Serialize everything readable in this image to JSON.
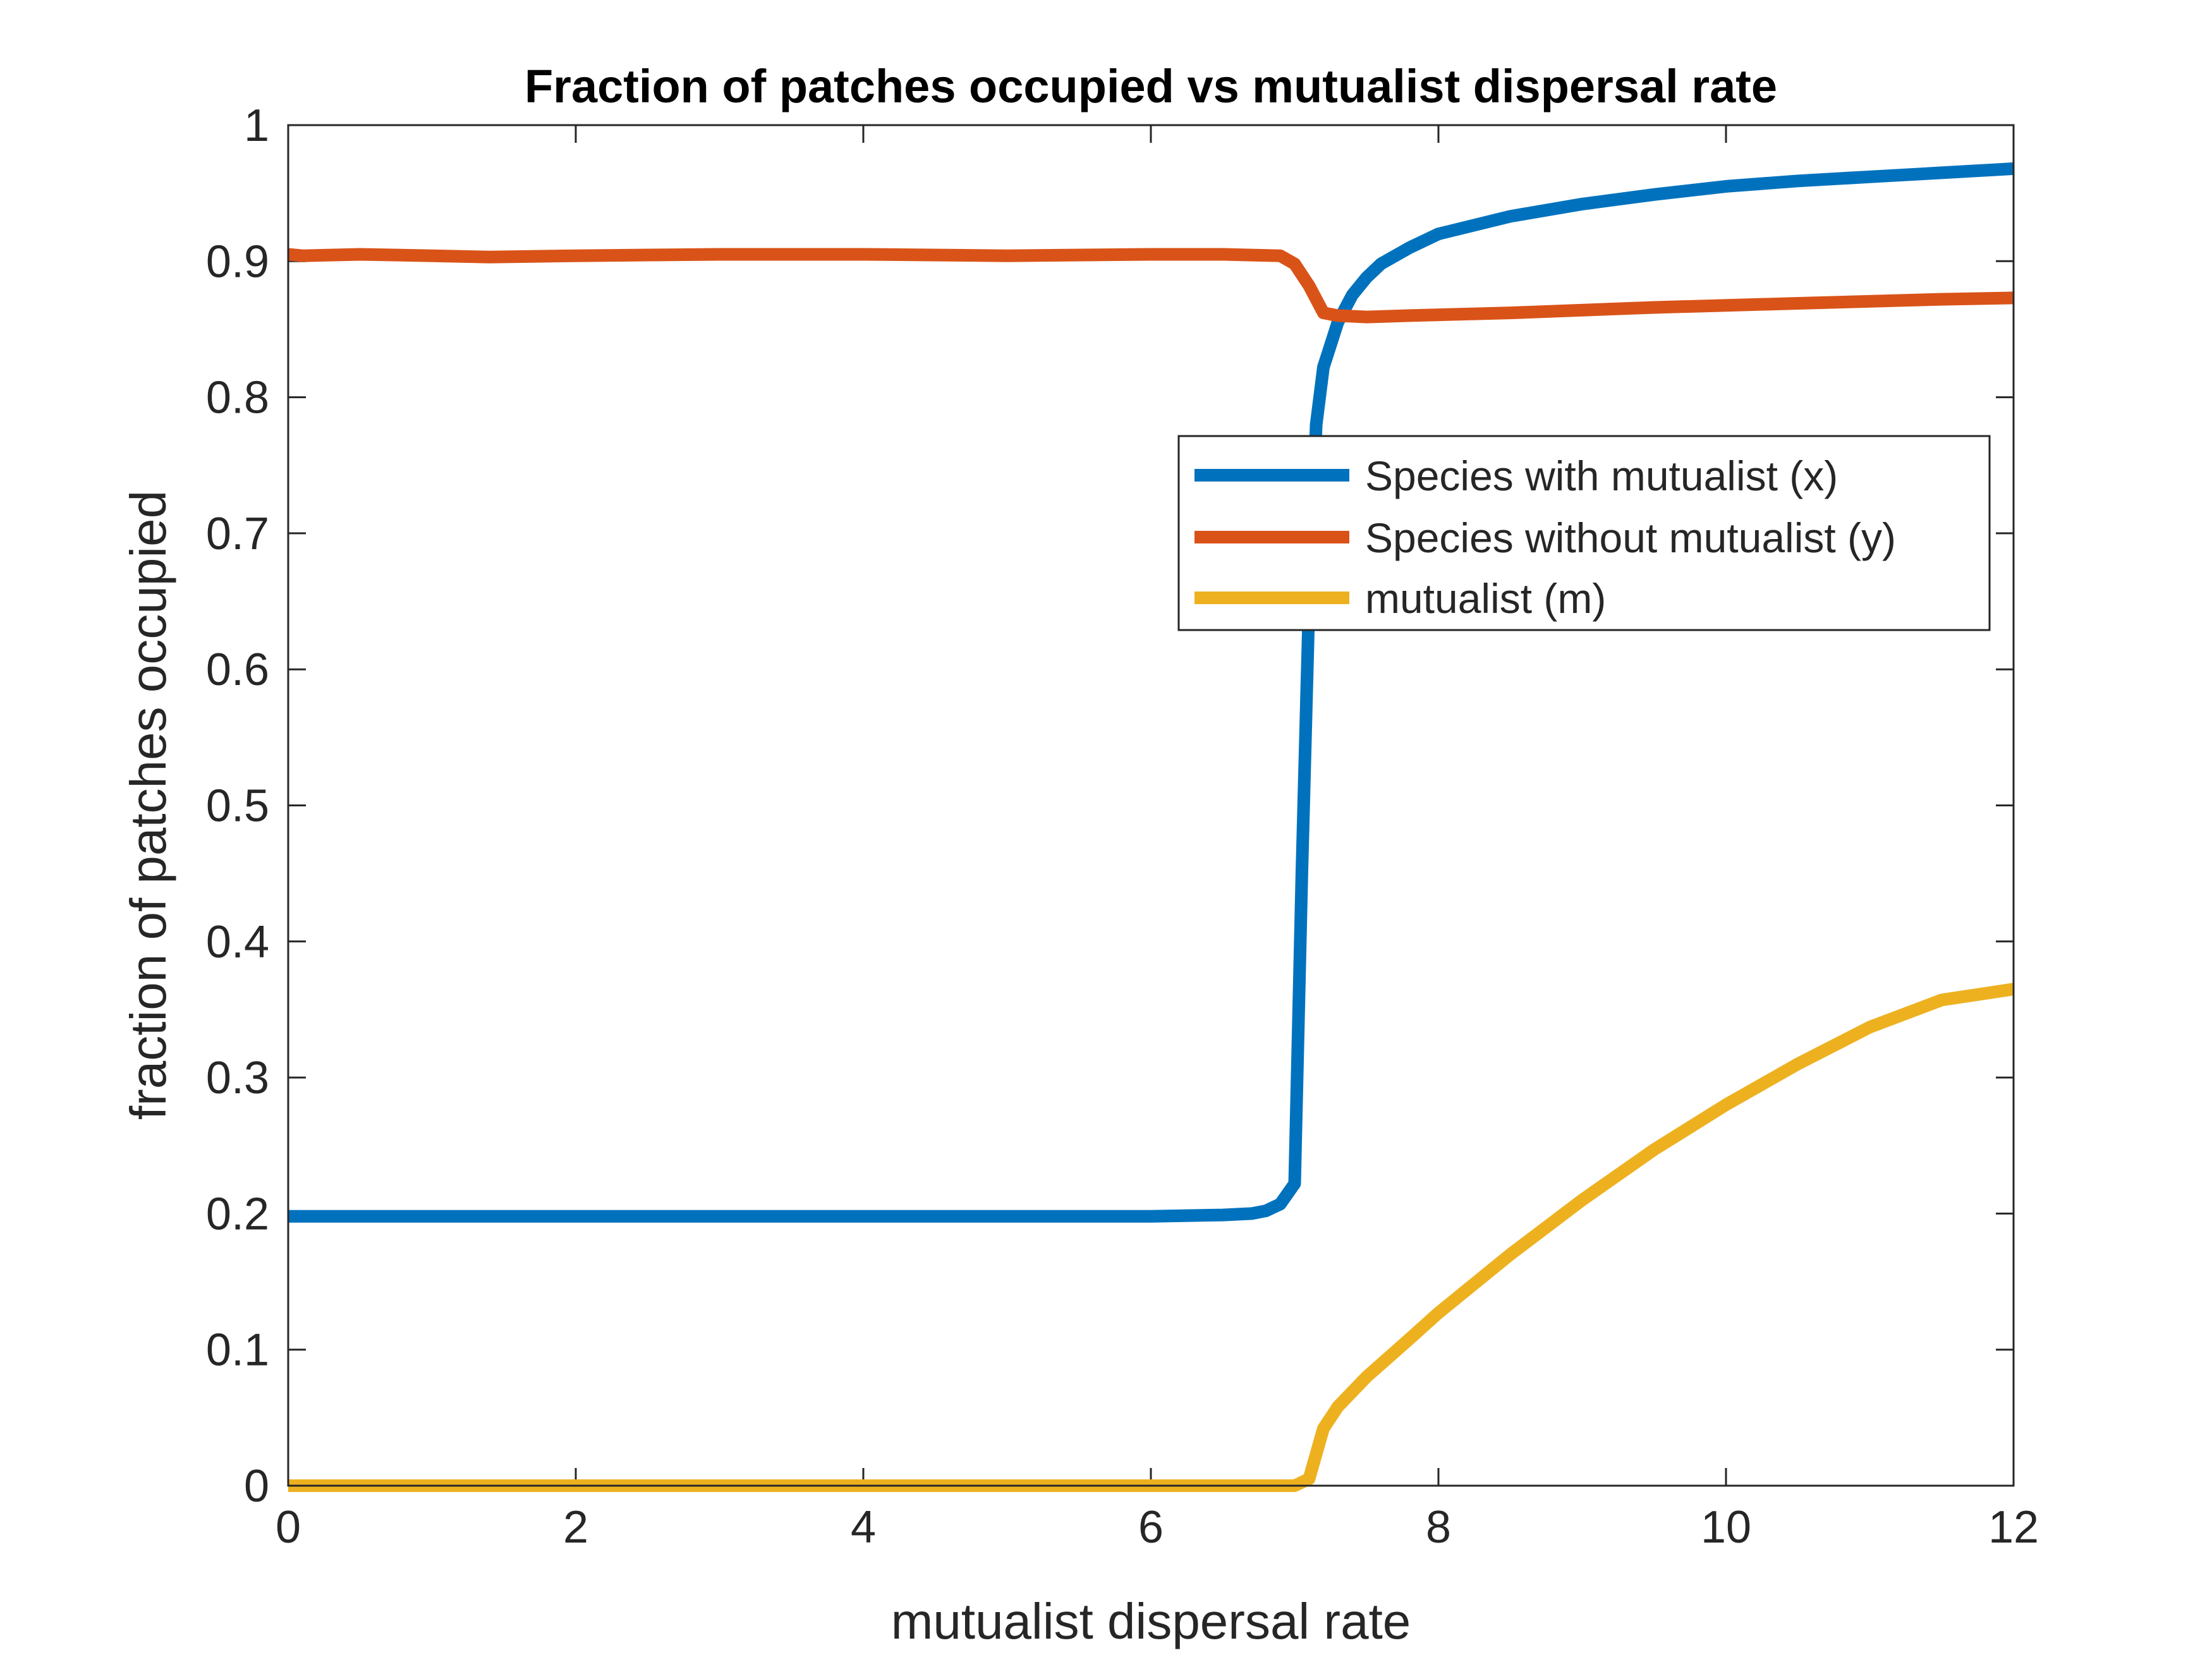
{
  "chart_data": {
    "type": "line",
    "title": "Fraction of patches occupied vs mutualist dispersal rate",
    "xlabel": "mutualist dispersal rate",
    "ylabel": "fraction of patches occupied",
    "xlim": [
      0,
      12
    ],
    "ylim": [
      0,
      1
    ],
    "xticks": [
      0,
      2,
      4,
      6,
      8,
      10,
      12
    ],
    "yticks": [
      0,
      0.1,
      0.2,
      0.3,
      0.4,
      0.5,
      0.6,
      0.7,
      0.8,
      0.9,
      1
    ],
    "grid": false,
    "legend_position": "upper-right",
    "series": [
      {
        "name": "Species with mutualist (x)",
        "color": "#0072BD",
        "x": [
          0,
          1,
          2,
          3,
          4,
          5,
          6,
          6.5,
          6.7,
          6.8,
          6.9,
          7.0,
          7.05,
          7.1,
          7.15,
          7.2,
          7.3,
          7.4,
          7.5,
          7.6,
          7.8,
          8.0,
          8.5,
          9.0,
          9.5,
          10.0,
          10.5,
          11.0,
          11.5,
          12.0
        ],
        "y": [
          0.198,
          0.198,
          0.198,
          0.198,
          0.198,
          0.198,
          0.198,
          0.199,
          0.2,
          0.202,
          0.207,
          0.222,
          0.45,
          0.65,
          0.78,
          0.822,
          0.855,
          0.875,
          0.888,
          0.898,
          0.91,
          0.92,
          0.933,
          0.942,
          0.949,
          0.955,
          0.959,
          0.962,
          0.965,
          0.968
        ]
      },
      {
        "name": "Species without mutualist (y)",
        "color": "#D95319",
        "x": [
          0,
          0.1,
          0.5,
          1.0,
          1.4,
          2,
          3,
          4,
          5,
          6,
          6.5,
          6.9,
          7.0,
          7.1,
          7.2,
          7.3,
          7.5,
          7.8,
          8.5,
          9.5,
          10.5,
          11.5,
          12.0
        ],
        "y": [
          0.905,
          0.904,
          0.905,
          0.904,
          0.903,
          0.904,
          0.905,
          0.905,
          0.904,
          0.905,
          0.905,
          0.904,
          0.898,
          0.882,
          0.862,
          0.86,
          0.859,
          0.86,
          0.862,
          0.866,
          0.869,
          0.872,
          0.873
        ]
      },
      {
        "name": "mutualist (m)",
        "color": "#EDB120",
        "x": [
          0,
          1,
          2,
          3,
          4,
          5,
          6,
          7.0,
          7.1,
          7.2,
          7.3,
          7.5,
          7.8,
          8.0,
          8.5,
          9.0,
          9.5,
          10.0,
          10.5,
          11.0,
          11.5,
          12.0
        ],
        "y": [
          0,
          0,
          0,
          0,
          0,
          0,
          0,
          0,
          0.005,
          0.042,
          0.058,
          0.08,
          0.108,
          0.127,
          0.17,
          0.21,
          0.247,
          0.28,
          0.31,
          0.337,
          0.357,
          0.365
        ]
      }
    ]
  }
}
